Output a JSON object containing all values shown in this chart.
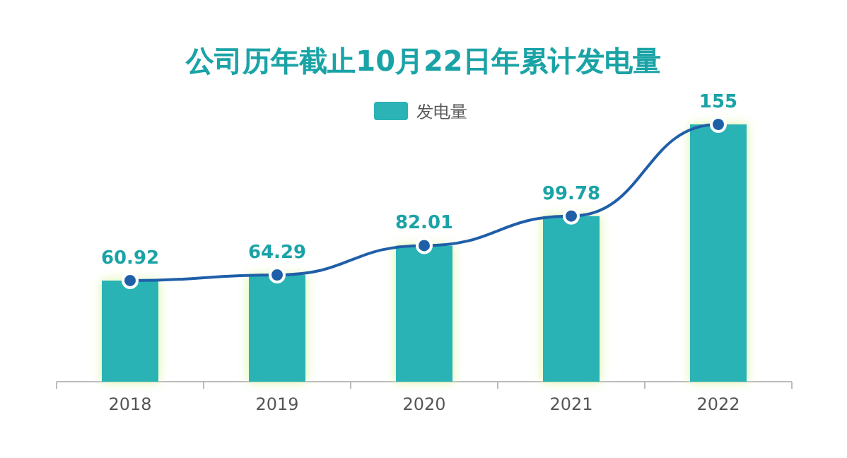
{
  "chart_data": {
    "type": "bar",
    "title": "公司历年截止10月22日年累计发电量",
    "categories": [
      "2018",
      "2019",
      "2020",
      "2021",
      "2022"
    ],
    "legend": "top",
    "grid": false,
    "series": [
      {
        "type": "line",
        "color": "#1f5fa8",
        "marker": "circle",
        "values": [
          60.92,
          64.29,
          82.01,
          99.78,
          155
        ],
        "value_labels": [
          "60.92",
          "64.29",
          "82.01",
          "99.78",
          "155"
        ]
      },
      {
        "name": "发电量",
        "color": "#2bb3b5",
        "values": [
          60.92,
          64.29,
          82.01,
          99.78,
          155
        ]
      }
    ]
  }
}
